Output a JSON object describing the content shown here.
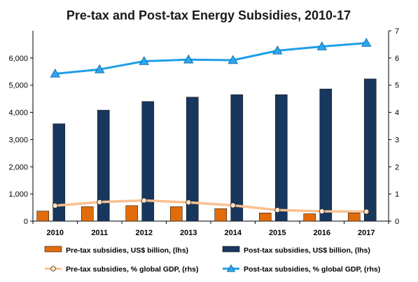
{
  "chart_data": {
    "type": "bar",
    "title": "Pre-tax and Post-tax Energy Subsidies, 2010-17",
    "categories": [
      "2010",
      "2011",
      "2012",
      "2013",
      "2014",
      "2015",
      "2016",
      "2017"
    ],
    "left_axis": {
      "ylim": [
        0,
        7000
      ],
      "ticks": [
        "0",
        "1,000",
        "2,000",
        "3,000",
        "4,000",
        "5,000",
        "6,000"
      ],
      "tick_values": [
        0,
        1000,
        2000,
        3000,
        4000,
        5000,
        6000
      ]
    },
    "right_axis": {
      "ylim": [
        0,
        7
      ],
      "ticks": [
        "0",
        "1",
        "2",
        "3",
        "4",
        "5",
        "6",
        "7"
      ],
      "tick_values": [
        0,
        1,
        2,
        3,
        4,
        5,
        6,
        7
      ]
    },
    "grid": false,
    "legend_position": "bottom",
    "series": [
      {
        "name": "Pre-tax subsidies, US$ billion, (lhs)",
        "kind": "bar",
        "axis": "left",
        "color": "#e36c0a",
        "values": [
          370,
          530,
          570,
          530,
          460,
          300,
          270,
          300
        ]
      },
      {
        "name": "Post-tax subsidies, US$ billion, (lhs)",
        "kind": "bar",
        "axis": "left",
        "color": "#17375e",
        "values": [
          3580,
          4080,
          4400,
          4560,
          4650,
          4650,
          4860,
          5230
        ]
      },
      {
        "name": "Pre-tax subsidies, % global GDP, (rhs)",
        "kind": "line",
        "axis": "right",
        "color": "#fac090",
        "marker": "circle",
        "values": [
          0.57,
          0.7,
          0.76,
          0.69,
          0.58,
          0.41,
          0.36,
          0.35
        ]
      },
      {
        "name": "Post-tax subsidies, % global GDP, (rhs)",
        "kind": "line",
        "axis": "right",
        "color": "#1f9ee8",
        "marker": "triangle",
        "values": [
          5.42,
          5.58,
          5.88,
          5.94,
          5.92,
          6.27,
          6.42,
          6.55
        ]
      }
    ]
  }
}
